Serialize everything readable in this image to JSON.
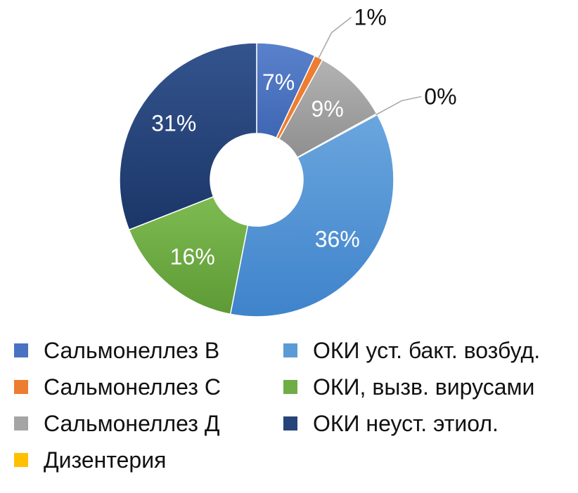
{
  "chart_data": {
    "type": "pie",
    "donut": true,
    "legend_position": "bottom",
    "title": "",
    "series": [
      {
        "name": "Сальмонеллез В",
        "value": 7,
        "label": "7%",
        "color": "#4a72c2",
        "label_style": "inside"
      },
      {
        "name": "Сальмонеллез С",
        "value": 1,
        "label": "1%",
        "color": "#ed7d31",
        "label_style": "callout"
      },
      {
        "name": "Сальмонеллез Д",
        "value": 9,
        "label": "9%",
        "color": "#a5a5a5",
        "label_style": "inside"
      },
      {
        "name": "Дизентерия",
        "value": 0.15,
        "label": "0%",
        "color": "#ffc000",
        "label_style": "callout"
      },
      {
        "name": "ОКИ уст. бакт. возбуд.",
        "value": 36,
        "label": "36%",
        "color": "#5b9bd5",
        "label_style": "inside"
      },
      {
        "name": "ОКИ, вызв. вирусами",
        "value": 16,
        "label": "16%",
        "color": "#70ad47",
        "label_style": "inside"
      },
      {
        "name": "ОКИ неуст. этиол.",
        "value": 31,
        "label": "31%",
        "color": "#264478",
        "label_style": "inside"
      }
    ]
  }
}
